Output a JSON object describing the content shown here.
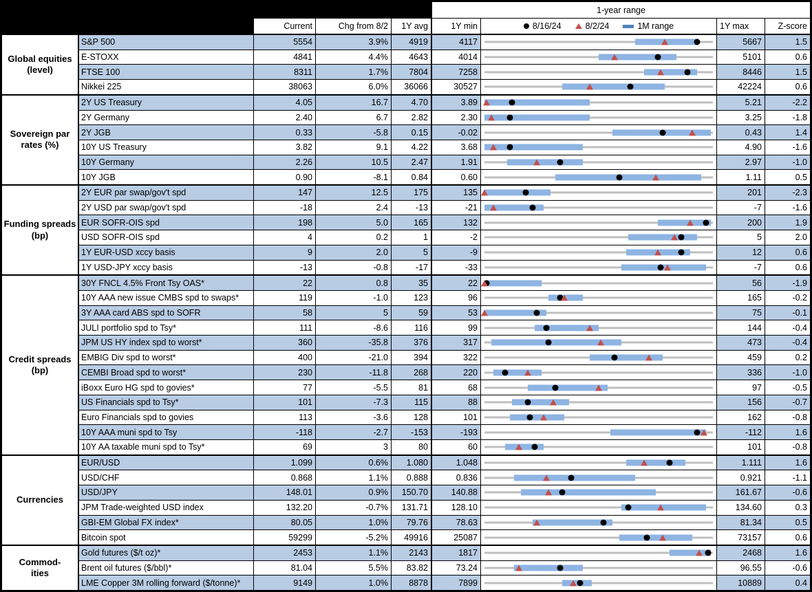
{
  "header": {
    "range_title": "1-year range",
    "columns": {
      "current": "Current",
      "chg": "Chg from 8/2",
      "avg": "1Y avg",
      "min": "1Y min",
      "max": "1Y max",
      "z": "Z-score"
    },
    "legend": {
      "dot_label": "8/16/24",
      "triangle_label": "8/2/24",
      "bar_label": "1M range"
    }
  },
  "colors": {
    "row_alt": "#B8CCE4",
    "range_bar": "#8EB4E3",
    "track": "#BFBFBF",
    "dot": "#000000",
    "triangle": "#C0504D",
    "legend_bar": "#4F81BD"
  },
  "chart_data": {
    "type": "table",
    "columns": [
      "Current",
      "Chg from 8/2",
      "1Y avg",
      "1Y min",
      "1-year range",
      "1Y max",
      "Z-score"
    ],
    "groups": [
      {
        "label": "Global equities\n(level)",
        "rows": [
          {
            "label": "S&P 500",
            "current": "5554",
            "chg": "3.9%",
            "avg": "4919",
            "min": "4117",
            "max": "5667",
            "z": "1.5",
            "range": {
              "dot": 0.93,
              "tri": 0.79,
              "bar": [
                0.66,
                0.93
              ]
            }
          },
          {
            "label": "E-STOXX",
            "current": "4841",
            "chg": "4.4%",
            "avg": "4643",
            "min": "4014",
            "max": "5101",
            "z": "0.6",
            "range": {
              "dot": 0.76,
              "tri": 0.57,
              "bar": [
                0.5,
                0.84
              ]
            }
          },
          {
            "label": "FTSE 100",
            "current": "8311",
            "chg": "1.7%",
            "avg": "7804",
            "min": "7258",
            "max": "8446",
            "z": "1.5",
            "range": {
              "dot": 0.89,
              "tri": 0.77,
              "bar": [
                0.7,
                0.93
              ]
            }
          },
          {
            "label": "Nikkei 225",
            "current": "38063",
            "chg": "6.0%",
            "avg": "36066",
            "min": "30527",
            "max": "42224",
            "z": "0.6",
            "range": {
              "dot": 0.64,
              "tri": 0.46,
              "bar": [
                0.34,
                0.79
              ]
            }
          }
        ]
      },
      {
        "label": "Sovereign par\nrates (%)",
        "rows": [
          {
            "label": "2Y US Treasury",
            "current": "4.05",
            "chg": "16.7",
            "avg": "4.70",
            "min": "3.89",
            "max": "5.21",
            "z": "-2.2",
            "range": {
              "dot": 0.12,
              "tri": 0.01,
              "bar": [
                0.0,
                0.46
              ]
            }
          },
          {
            "label": "2Y Germany",
            "current": "2.40",
            "chg": "6.7",
            "avg": "2.82",
            "min": "2.30",
            "max": "3.25",
            "z": "-1.8",
            "range": {
              "dot": 0.11,
              "tri": 0.03,
              "bar": [
                0.0,
                0.46
              ]
            }
          },
          {
            "label": "2Y JGB",
            "current": "0.33",
            "chg": "-5.8",
            "avg": "0.15",
            "min": "-0.02",
            "max": "0.43",
            "z": "1.4",
            "range": {
              "dot": 0.78,
              "tri": 0.91,
              "bar": [
                0.56,
                0.99
              ]
            }
          },
          {
            "label": "10Y US Treasury",
            "current": "3.82",
            "chg": "9.1",
            "avg": "4.22",
            "min": "3.68",
            "max": "4.90",
            "z": "-1.6",
            "range": {
              "dot": 0.11,
              "tri": 0.04,
              "bar": [
                0.0,
                0.43
              ]
            }
          },
          {
            "label": "10Y Germany",
            "current": "2.26",
            "chg": "10.5",
            "avg": "2.47",
            "min": "1.91",
            "max": "2.97",
            "z": "-1.0",
            "range": {
              "dot": 0.33,
              "tri": 0.23,
              "bar": [
                0.1,
                0.43
              ]
            }
          },
          {
            "label": "10Y JGB",
            "current": "0.90",
            "chg": "-8.1",
            "avg": "0.84",
            "min": "0.60",
            "max": "1.11",
            "z": "0.5",
            "range": {
              "dot": 0.59,
              "tri": 0.75,
              "bar": [
                0.31,
                0.95
              ]
            }
          }
        ]
      },
      {
        "label": "Funding spreads\n(bp)",
        "rows": [
          {
            "label": "2Y EUR par swap/gov't spd",
            "current": "147",
            "chg": "12.5",
            "avg": "175",
            "min": "135",
            "max": "201",
            "z": "-2.3",
            "range": {
              "dot": 0.18,
              "tri": 0.0,
              "bar": [
                0.0,
                0.29
              ]
            }
          },
          {
            "label": "2Y USD par swap/gov't spd",
            "current": "-18",
            "chg": "2.4",
            "avg": "-13",
            "min": "-21",
            "max": "-7",
            "z": "-1.6",
            "range": {
              "dot": 0.21,
              "tri": 0.04,
              "bar": [
                0.0,
                0.26
              ]
            }
          },
          {
            "label": "EUR SOFR-OIS spd",
            "current": "198",
            "chg": "5.0",
            "avg": "165",
            "min": "132",
            "max": "200",
            "z": "1.9",
            "range": {
              "dot": 0.97,
              "tri": 0.9,
              "bar": [
                0.76,
                0.99
              ]
            }
          },
          {
            "label": "USD SOFR-OIS spd",
            "current": "4",
            "chg": "0.2",
            "avg": "1",
            "min": "-2",
            "max": "5",
            "z": "2.0",
            "range": {
              "dot": 0.86,
              "tri": 0.83,
              "bar": [
                0.63,
                0.93
              ]
            }
          },
          {
            "label": "1Y EUR-USD xccy basis",
            "current": "9",
            "chg": "2.0",
            "avg": "5",
            "min": "-9",
            "max": "12",
            "z": "0.6",
            "range": {
              "dot": 0.86,
              "tri": 0.76,
              "bar": [
                0.62,
                0.9
              ]
            }
          },
          {
            "label": "1Y USD-JPY xccy basis",
            "current": "-13",
            "chg": "-0.8",
            "avg": "-17",
            "min": "-33",
            "max": "-7",
            "z": "0.6",
            "range": {
              "dot": 0.77,
              "tri": 0.8,
              "bar": [
                0.6,
                0.97
              ]
            }
          }
        ]
      },
      {
        "label": "Credit spreads\n(bp)",
        "rows": [
          {
            "label": "30Y FNCL 4.5% Front Tsy OAS*",
            "current": "22",
            "chg": "0.8",
            "avg": "35",
            "min": "22",
            "max": "56",
            "z": "-1.9",
            "range": {
              "dot": 0.01,
              "tri": 0.0,
              "bar": [
                0.0,
                0.25
              ]
            }
          },
          {
            "label": "10Y AAA new issue CMBS spd to swaps*",
            "current": "119",
            "chg": "-1.0",
            "avg": "123",
            "min": "96",
            "max": "165",
            "z": "-0.2",
            "range": {
              "dot": 0.33,
              "tri": 0.35,
              "bar": [
                0.28,
                0.43
              ]
            }
          },
          {
            "label": "3Y AAA card ABS spd to SOFR",
            "current": "58",
            "chg": "5",
            "avg": "59",
            "min": "53",
            "max": "75",
            "z": "-0.1",
            "range": {
              "dot": 0.23,
              "tri": 0.0,
              "bar": [
                0.0,
                0.27
              ]
            }
          },
          {
            "label": "JULI portfolio spd to Tsy*",
            "current": "111",
            "chg": "-8.6",
            "avg": "116",
            "min": "99",
            "max": "144",
            "z": "-0.4",
            "range": {
              "dot": 0.27,
              "tri": 0.46,
              "bar": [
                0.22,
                0.5
              ]
            }
          },
          {
            "label": "JPM US HY index spd to worst*",
            "current": "360",
            "chg": "-35.8",
            "avg": "376",
            "min": "317",
            "max": "473",
            "z": "-0.4",
            "range": {
              "dot": 0.28,
              "tri": 0.51,
              "bar": [
                0.03,
                0.6
              ]
            }
          },
          {
            "label": "EMBIG Div spd to worst*",
            "current": "400",
            "chg": "-21.0",
            "avg": "394",
            "min": "322",
            "max": "459",
            "z": "0.2",
            "range": {
              "dot": 0.57,
              "tri": 0.72,
              "bar": [
                0.46,
                0.78
              ]
            }
          },
          {
            "label": "CEMBI Broad spd to worst*",
            "current": "230",
            "chg": "-11.8",
            "avg": "268",
            "min": "220",
            "max": "336",
            "z": "-1.0",
            "range": {
              "dot": 0.09,
              "tri": 0.19,
              "bar": [
                0.04,
                0.25
              ]
            }
          },
          {
            "label": "iBoxx Euro HG spd to govies*",
            "current": "77",
            "chg": "-5.5",
            "avg": "81",
            "min": "68",
            "max": "97",
            "z": "-0.5",
            "range": {
              "dot": 0.31,
              "tri": 0.5,
              "bar": [
                0.19,
                0.54
              ]
            }
          },
          {
            "label": "US Financials spd to Tsy*",
            "current": "101",
            "chg": "-7.3",
            "avg": "115",
            "min": "88",
            "max": "156",
            "z": "-0.7",
            "range": {
              "dot": 0.19,
              "tri": 0.3,
              "bar": [
                0.12,
                0.37
              ]
            }
          },
          {
            "label": "Euro Financials spd to govies",
            "current": "113",
            "chg": "-3.6",
            "avg": "128",
            "min": "101",
            "max": "162",
            "z": "-0.8",
            "range": {
              "dot": 0.2,
              "tri": 0.26,
              "bar": [
                0.11,
                0.35
              ]
            }
          },
          {
            "label": "10Y AAA muni spd to Tsy",
            "current": "-118",
            "chg": "-2.7",
            "avg": "-153",
            "min": "-193",
            "max": "-112",
            "z": "1.6",
            "range": {
              "dot": 0.93,
              "tri": 0.96,
              "bar": [
                0.55,
                0.97
              ]
            }
          },
          {
            "label": "10Y AA taxable muni spd to Tsy*",
            "current": "69",
            "chg": "3",
            "avg": "80",
            "min": "60",
            "max": "101",
            "z": "-0.8",
            "range": {
              "dot": 0.22,
              "tri": 0.15,
              "bar": [
                0.09,
                0.26
              ]
            }
          }
        ]
      },
      {
        "label": "Currencies",
        "rows": [
          {
            "label": "EUR/USD",
            "current": "1.099",
            "chg": "0.6%",
            "avg": "1.080",
            "min": "1.048",
            "max": "1.111",
            "z": "1.6",
            "range": {
              "dot": 0.81,
              "tri": 0.7,
              "bar": [
                0.62,
                0.88
              ]
            }
          },
          {
            "label": "USD/CHF",
            "current": "0.868",
            "chg": "1.1%",
            "avg": "0.888",
            "min": "0.836",
            "max": "0.921",
            "z": "-1.1",
            "range": {
              "dot": 0.38,
              "tri": 0.27,
              "bar": [
                0.13,
                0.66
              ]
            }
          },
          {
            "label": "USD/JPY",
            "current": "148.01",
            "chg": "0.9%",
            "avg": "150.70",
            "min": "140.88",
            "max": "161.67",
            "z": "-0.6",
            "range": {
              "dot": 0.34,
              "tri": 0.28,
              "bar": [
                0.16,
                0.75
              ]
            }
          },
          {
            "label": "JPM Trade-weighted USD index",
            "current": "132.20",
            "chg": "-0.7%",
            "avg": "131.71",
            "min": "128.10",
            "max": "134.60",
            "z": "0.3",
            "range": {
              "dot": 0.63,
              "tri": 0.77,
              "bar": [
                0.6,
                0.97
              ]
            }
          },
          {
            "label": "GBI-EM Global FX index*",
            "current": "80.05",
            "chg": "1.0%",
            "avg": "79.76",
            "min": "78.63",
            "max": "81.34",
            "z": "0.5",
            "range": {
              "dot": 0.52,
              "tri": 0.23,
              "bar": [
                0.21,
                0.56
              ]
            }
          },
          {
            "label": "Bitcoin spot",
            "current": "59299",
            "chg": "-5.2%",
            "avg": "49916",
            "min": "25087",
            "max": "73157",
            "z": "0.6",
            "range": {
              "dot": 0.71,
              "tri": 0.78,
              "bar": [
                0.59,
                0.91
              ]
            }
          }
        ]
      },
      {
        "label": "Commod-\nities",
        "rows": [
          {
            "label": "Gold futures ($/t oz)*",
            "current": "2453",
            "chg": "1.1%",
            "avg": "2143",
            "min": "1817",
            "max": "2468",
            "z": "1.6",
            "range": {
              "dot": 0.98,
              "tri": 0.94,
              "bar": [
                0.81,
                0.99
              ]
            }
          },
          {
            "label": "Brent oil futures ($/bbl)*",
            "current": "81.04",
            "chg": "5.5%",
            "avg": "83.82",
            "min": "73.24",
            "max": "96.55",
            "z": "-0.6",
            "range": {
              "dot": 0.33,
              "tri": 0.15,
              "bar": [
                0.13,
                0.43
              ]
            }
          },
          {
            "label": "LME Copper 3M rolling forward ($/tonne)*",
            "current": "9149",
            "chg": "1.0%",
            "avg": "8878",
            "min": "7899",
            "max": "10889",
            "z": "0.4",
            "range": {
              "dot": 0.42,
              "tri": 0.39,
              "bar": [
                0.34,
                0.47
              ]
            }
          }
        ]
      }
    ]
  }
}
